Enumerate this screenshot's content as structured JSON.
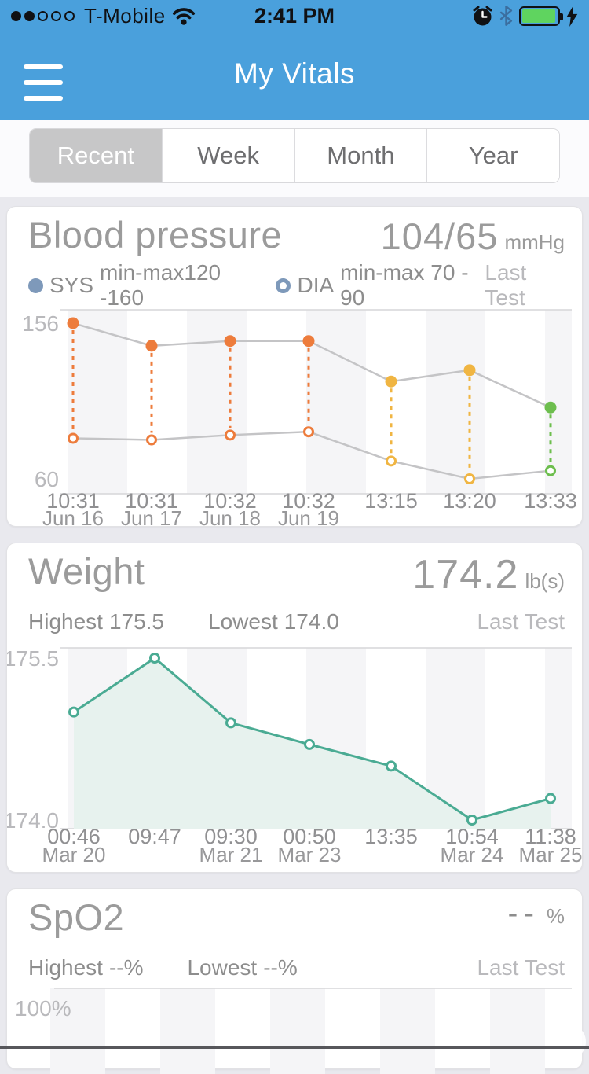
{
  "status_bar": {
    "carrier": "T-Mobile",
    "time": "2:41 PM",
    "signal": {
      "filled": 2,
      "total": 5
    },
    "icons": [
      "signal-dots",
      "wifi",
      "alarm-clock",
      "bluetooth",
      "battery",
      "charging-bolt"
    ],
    "battery_color": "#5fd45f"
  },
  "nav": {
    "title": "My Vitals"
  },
  "tabs": {
    "items": [
      "Recent",
      "Week",
      "Month",
      "Year"
    ],
    "selected": "Recent"
  },
  "cards": {
    "blood_pressure": {
      "title": "Blood pressure",
      "value": "104/65",
      "unit": "mmHg",
      "legend": {
        "sys_label": "SYS",
        "sys_range": "min-max120 -160",
        "dia_label": "DIA",
        "dia_range": "min-max 70 - 90"
      },
      "last_test_label": "Last Test"
    },
    "weight": {
      "title": "Weight",
      "value": "174.2",
      "unit": "lb(s)",
      "highest_label": "Highest",
      "highest_value": "175.5",
      "lowest_label": "Lowest",
      "lowest_value": "174.0",
      "last_test_label": "Last Test"
    },
    "spo2": {
      "title": "SpO2",
      "value": "--",
      "unit": "%",
      "highest_label": "Highest",
      "highest_value": "--%",
      "lowest_label": "Lowest",
      "lowest_value": "--%",
      "last_test_label": "Last Test"
    }
  },
  "chart_data": [
    {
      "id": "bp",
      "type": "line",
      "title": "Blood pressure",
      "ylabel": "mmHg",
      "ylim": [
        60,
        156
      ],
      "y_tick_labels": [
        "156",
        "60"
      ],
      "grid": "striped",
      "legend_position": "top",
      "x_ticks": [
        {
          "time": "10:31",
          "date": "Jun 16"
        },
        {
          "time": "10:31",
          "date": "Jun 17"
        },
        {
          "time": "10:32",
          "date": "Jun 18"
        },
        {
          "time": "10:32",
          "date": "Jun 19"
        },
        {
          "time": "13:15",
          "date": ""
        },
        {
          "time": "13:20",
          "date": ""
        },
        {
          "time": "13:33",
          "date": ""
        }
      ],
      "series": [
        {
          "name": "SYS",
          "marker": "filled",
          "values": [
            156,
            142,
            145,
            145,
            120,
            127,
            104
          ]
        },
        {
          "name": "DIA",
          "marker": "open",
          "values": [
            85,
            84,
            87,
            89,
            71,
            60,
            65
          ]
        }
      ],
      "point_colors": [
        "#ed7c3c",
        "#ed7c3c",
        "#ed7c3c",
        "#ed7c3c",
        "#f0b542",
        "#f0b542",
        "#6dbe4e"
      ],
      "connector_color": "#c4c4c6"
    },
    {
      "id": "weight",
      "type": "area",
      "title": "Weight",
      "ylabel": "lb(s)",
      "ylim": [
        174.0,
        175.5
      ],
      "y_tick_labels": [
        "175.5",
        "174.0"
      ],
      "grid": "striped",
      "x_ticks": [
        {
          "time": "00:46",
          "date": "Mar 20"
        },
        {
          "time": "09:47",
          "date": ""
        },
        {
          "time": "09:30",
          "date": "Mar 21"
        },
        {
          "time": "00:50",
          "date": "Mar 23"
        },
        {
          "time": "13:35",
          "date": ""
        },
        {
          "time": "10:54",
          "date": "Mar 24"
        },
        {
          "time": "11:38",
          "date": "Mar 25"
        }
      ],
      "series": [
        {
          "name": "Weight",
          "marker": "open",
          "values": [
            175.0,
            175.5,
            174.9,
            174.7,
            174.5,
            174.0,
            174.2
          ]
        }
      ],
      "line_color": "#4aab93",
      "fill_color": "#e7f2ee"
    },
    {
      "id": "spo2",
      "type": "line",
      "title": "SpO2",
      "ylabel": "%",
      "ylim": [
        null,
        100
      ],
      "y_tick_labels": [
        "100%"
      ],
      "grid": "striped",
      "x_ticks": [],
      "series": [],
      "note": "no data recorded"
    }
  ],
  "colors": {
    "header_blue": "#4aa0dc",
    "page_bg": "#e9e9ee",
    "card_bg": "#ffffff",
    "selected_tab_bg": "#c7c7c8",
    "title_gray": "#9b9b9b",
    "text_gray": "#8d8d8d",
    "muted_gray": "#b9b9bc",
    "stripe_gray": "#f5f5f7",
    "hairline_gray": "#d6d6d8",
    "sys_orange": "#ed7c3c",
    "amber": "#f0b542",
    "green": "#6dbe4e",
    "teal": "#4aab93",
    "legend_slate": "#7e99ba"
  }
}
